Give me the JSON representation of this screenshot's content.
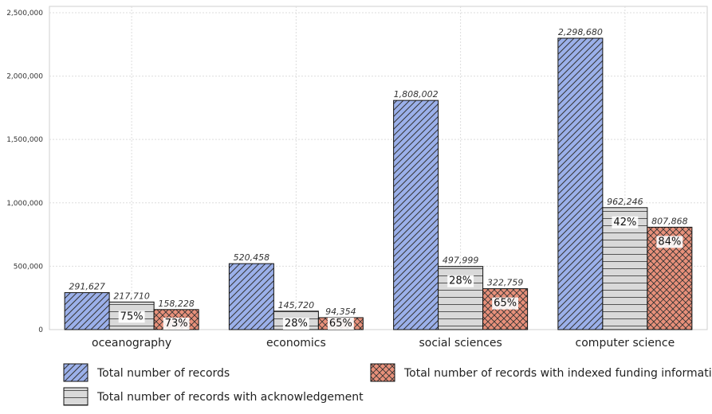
{
  "chart_data": {
    "type": "bar",
    "categories": [
      "oceanography",
      "economics",
      "social sciences",
      "computer science"
    ],
    "series": [
      {
        "name": "Total number of records",
        "values": [
          291627,
          520458,
          1808002,
          2298680
        ],
        "value_labels": [
          "291,627",
          "520,458",
          "1,808,002",
          "2,298,680"
        ],
        "color": "#9bb0ea",
        "pattern": "diagonal"
      },
      {
        "name": "Total number of records with acknowledgement",
        "values": [
          217710,
          145720,
          497999,
          962246
        ],
        "value_labels": [
          "217,710",
          "145,720",
          "497,999",
          "962,246"
        ],
        "percent_labels": [
          "75%",
          "28%",
          "28%",
          "42%"
        ],
        "color": "#d9d9d9",
        "pattern": "horizontal"
      },
      {
        "name": "Total number of records with indexed funding information",
        "values": [
          158228,
          94354,
          322759,
          807868
        ],
        "value_labels": [
          "158,228",
          "94,354",
          "322,759",
          "807,868"
        ],
        "percent_labels": [
          "73%",
          "65%",
          "65%",
          "84%"
        ],
        "color": "#e8907a",
        "pattern": "crosshatch"
      }
    ],
    "yticks": [
      0,
      500000,
      1000000,
      1500000,
      2000000,
      2500000
    ],
    "ytick_labels": [
      "0",
      "500,000",
      "1,000,000",
      "1,500,000",
      "2,000,000",
      "2,500,000"
    ],
    "ylim": [
      0,
      2550000
    ],
    "grid": true,
    "legend_position": "bottom"
  }
}
